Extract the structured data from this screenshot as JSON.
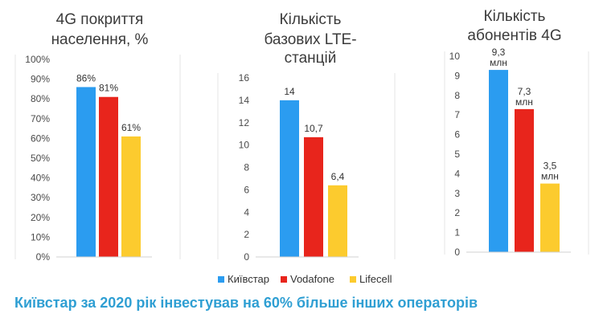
{
  "footer": "Київстар за 2020 рік інвестував на 60% більше інших операторів",
  "legend": [
    {
      "label": "Київстар",
      "color": "#2b9cf0"
    },
    {
      "label": "Vodafone",
      "color": "#e8251c"
    },
    {
      "label": "Lifecell",
      "color": "#fccb2e"
    }
  ],
  "chart_data": [
    {
      "type": "bar",
      "title": [
        "4G покриття",
        "населення, %"
      ],
      "categories": [
        "Київстар",
        "Vodafone",
        "Lifecell"
      ],
      "values": [
        86,
        81,
        61
      ],
      "data_labels": [
        "86%",
        "81%",
        "61%"
      ],
      "ylim": [
        0,
        100
      ],
      "yticks": [
        0,
        10,
        20,
        30,
        40,
        50,
        60,
        70,
        80,
        90,
        100
      ],
      "ytick_labels": [
        "0%",
        "10%",
        "20%",
        "30%",
        "40%",
        "50%",
        "60%",
        "70%",
        "80%",
        "90%",
        "100%"
      ],
      "colors": [
        "#2b9cf0",
        "#e8251c",
        "#fccb2e"
      ]
    },
    {
      "type": "bar",
      "title": [
        "Кількість",
        "базових LTE-",
        "станцій"
      ],
      "categories": [
        "Київстар",
        "Vodafone",
        "Lifecell"
      ],
      "values": [
        14,
        10.7,
        6.4
      ],
      "data_labels": [
        "14",
        "10,7",
        "6,4"
      ],
      "ylim": [
        0,
        16
      ],
      "yticks": [
        0,
        2,
        4,
        6,
        8,
        10,
        12,
        14,
        16
      ],
      "ytick_labels": [
        "0",
        "2",
        "4",
        "6",
        "8",
        "10",
        "12",
        "14",
        "16"
      ],
      "colors": [
        "#2b9cf0",
        "#e8251c",
        "#fccb2e"
      ]
    },
    {
      "type": "bar",
      "title": [
        "Кількість",
        "абонентів 4G"
      ],
      "categories": [
        "Київстар",
        "Vodafone",
        "Lifecell"
      ],
      "values": [
        9.3,
        7.3,
        3.5
      ],
      "data_labels": [
        [
          "9,3",
          "млн"
        ],
        [
          "7,3",
          "млн"
        ],
        [
          "3,5",
          "млн"
        ]
      ],
      "ylim": [
        0,
        10
      ],
      "yticks": [
        0,
        1,
        2,
        3,
        4,
        5,
        6,
        7,
        8,
        9,
        10
      ],
      "ytick_labels": [
        "0",
        "1",
        "2",
        "3",
        "4",
        "5",
        "6",
        "7",
        "8",
        "9",
        "10"
      ],
      "colors": [
        "#2b9cf0",
        "#e8251c",
        "#fccb2e"
      ]
    }
  ]
}
